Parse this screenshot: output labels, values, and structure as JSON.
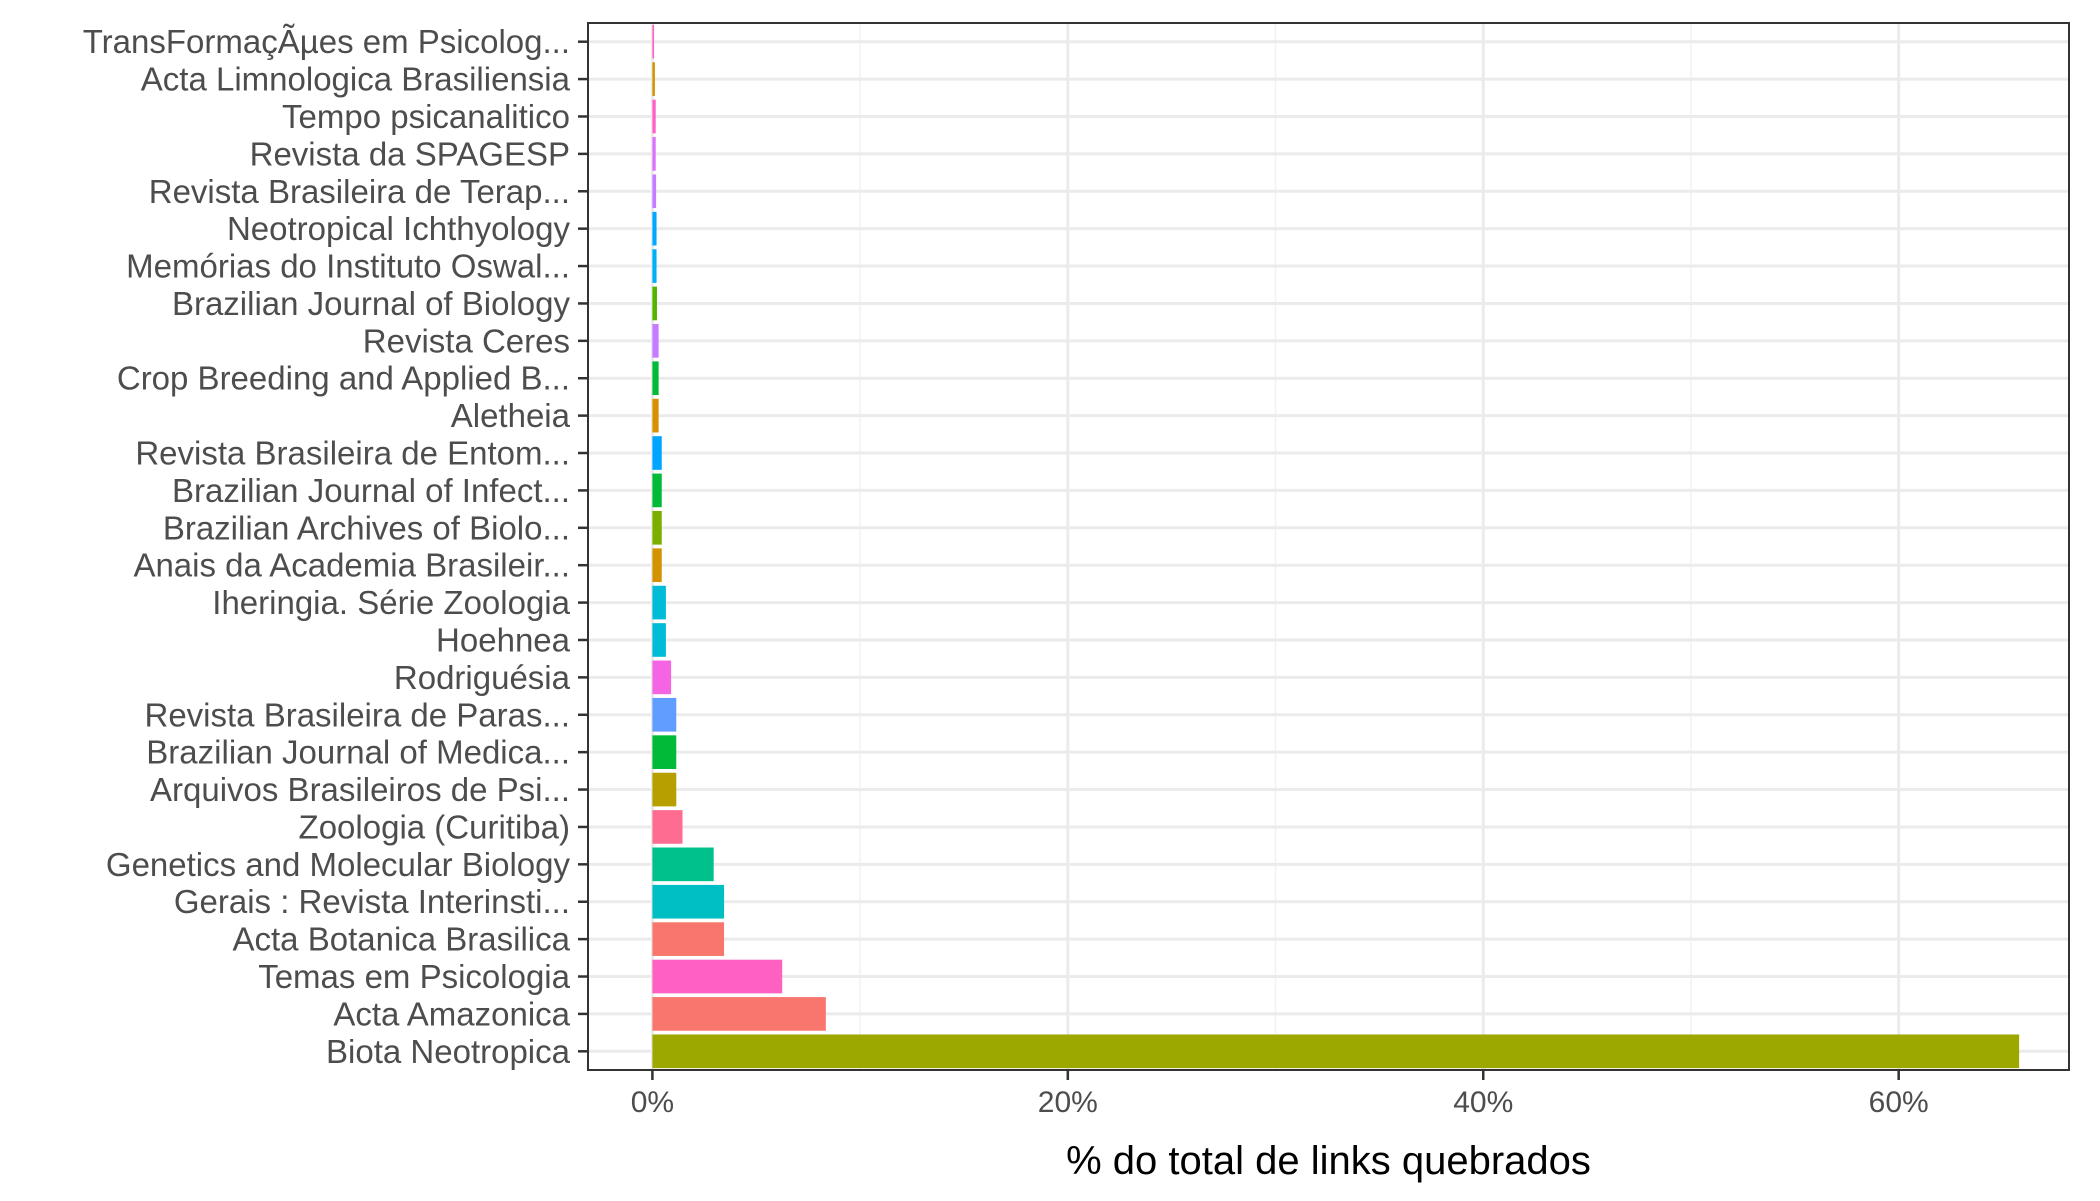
{
  "chart_data": {
    "type": "bar",
    "orientation": "horizontal",
    "xlabel": "% do total de links quebrados",
    "ylabel": "",
    "xlim": [
      -0.031,
      0.682
    ],
    "x_ticks": [
      0,
      0.2,
      0.4,
      0.6
    ],
    "x_tick_labels": [
      "0%",
      "20%",
      "40%",
      "60%"
    ],
    "grid": true,
    "legend": "none",
    "categories": [
      "TransFormaçÃµes em Psicolog...",
      "Acta Limnologica Brasiliensia",
      "Tempo psicanalitico",
      "Revista da SPAGESP",
      "Revista Brasileira de Terap...",
      "Neotropical Ichthyology",
      "Memórias do Instituto Oswal...",
      "Brazilian Journal of Biology",
      "Revista Ceres",
      "Crop Breeding and Applied B...",
      "Aletheia",
      "Revista Brasileira de Entom...",
      "Brazilian Journal of Infect...",
      "Brazilian Archives of Biolo...",
      "Anais da Academia Brasileir...",
      "Iheringia. Série Zoologia",
      "Hoehnea",
      "Rodriguésia",
      "Revista Brasileira de Paras...",
      "Brazilian Journal of Medica...",
      "Arquivos Brasileiros de Psi...",
      "Zoologia (Curitiba)",
      "Genetics and Molecular Biology",
      "Gerais : Revista Interinsti...",
      "Acta Botanica Brasilica",
      "Temas em Psicologia",
      "Acta Amazonica",
      "Biota Neotropica"
    ],
    "values": [
      0.0008,
      0.0012,
      0.0016,
      0.0016,
      0.0018,
      0.002,
      0.002,
      0.0022,
      0.003,
      0.003,
      0.003,
      0.0045,
      0.0045,
      0.0045,
      0.0045,
      0.0065,
      0.0065,
      0.009,
      0.0115,
      0.0115,
      0.0115,
      0.0145,
      0.0295,
      0.0345,
      0.0345,
      0.0625,
      0.0835,
      0.658
    ],
    "colors": [
      "#FF61C9",
      "#D39200",
      "#FF61C9",
      "#DB72FB",
      "#C77CFF",
      "#00A9FF",
      "#00B0F6",
      "#53B400",
      "#C77CFF",
      "#00BA38",
      "#D89000",
      "#00A5FF",
      "#00BA38",
      "#7CAE00",
      "#D39200",
      "#00BCD8",
      "#00BCD8",
      "#F564E3",
      "#619CFF",
      "#00BA38",
      "#B79F00",
      "#FF6C91",
      "#00C08B",
      "#00BFC4",
      "#F8766D",
      "#FF61C3",
      "#F8766D",
      "#9CA700"
    ]
  }
}
